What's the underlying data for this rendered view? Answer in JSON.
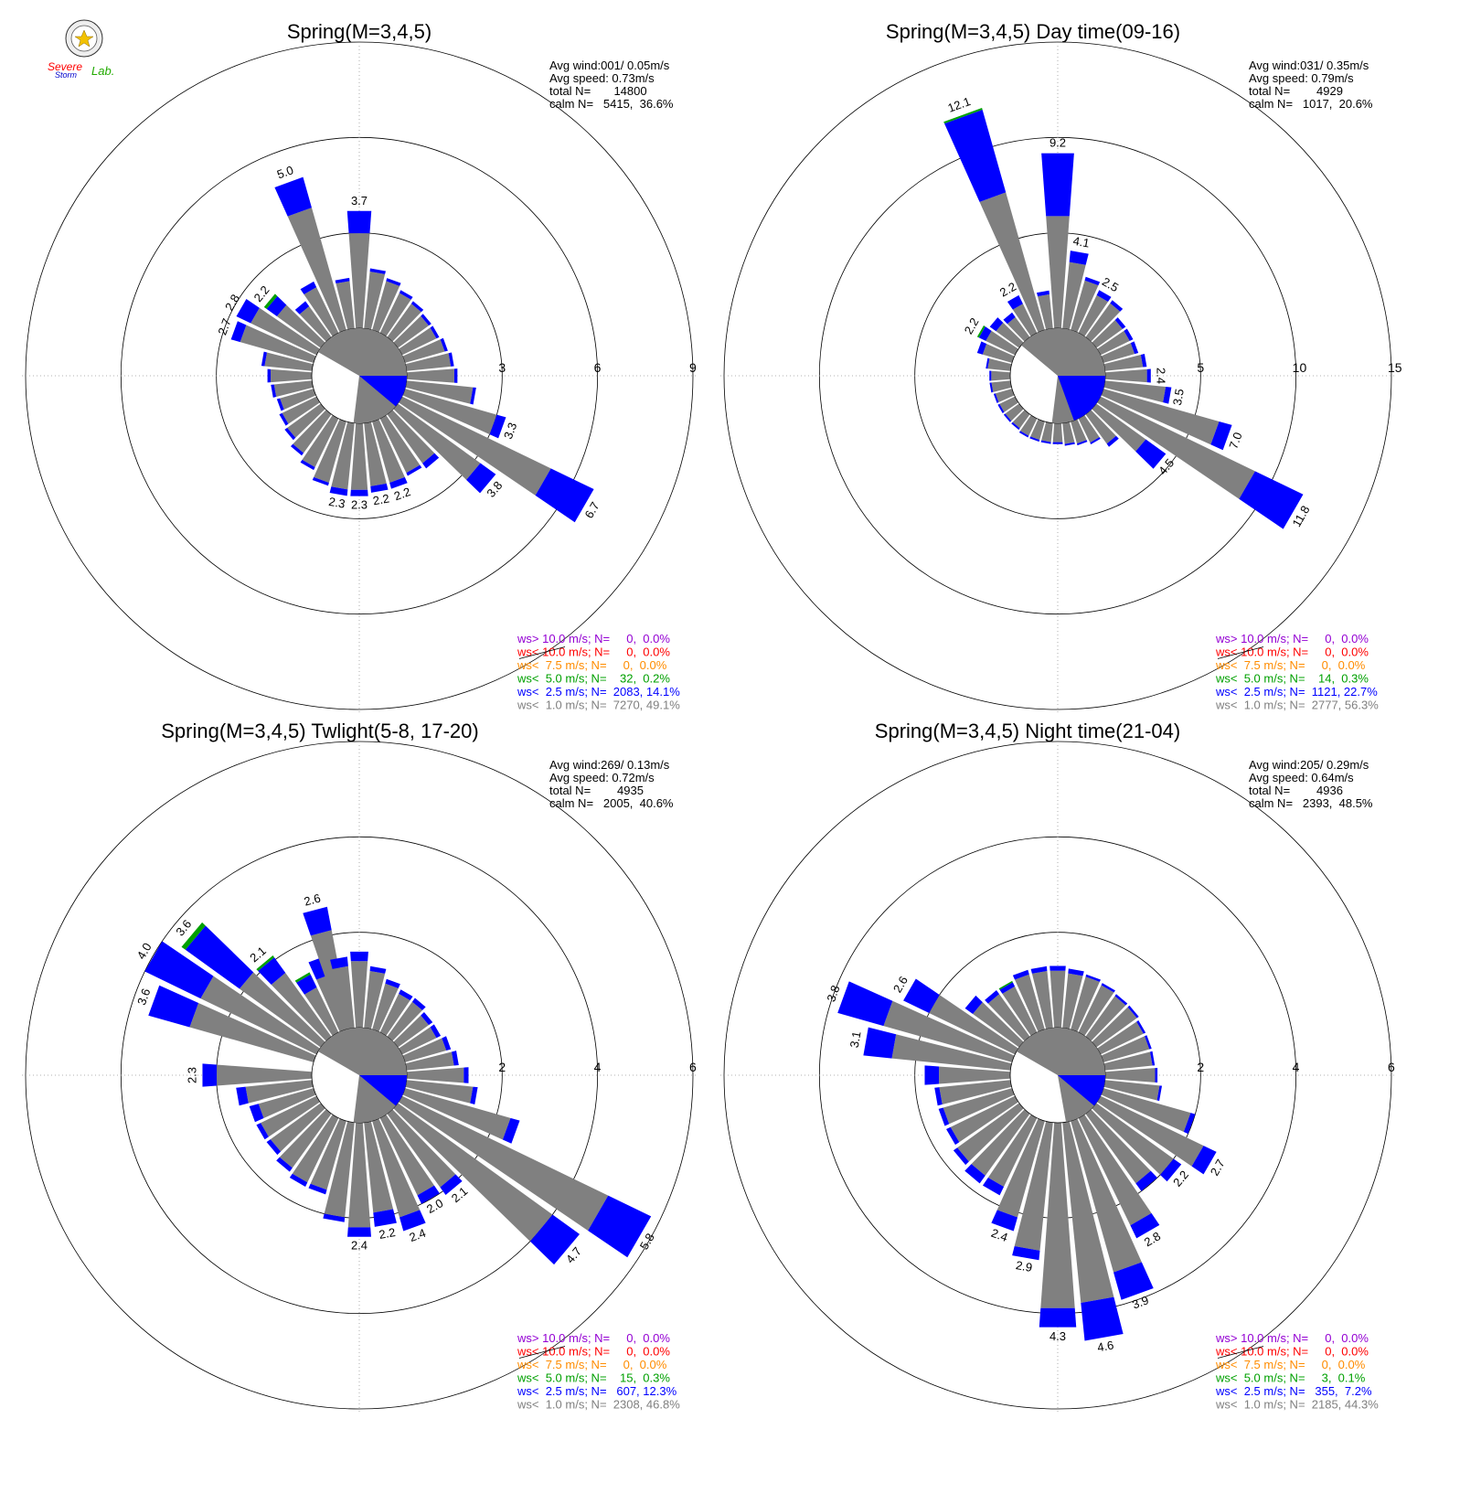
{
  "logo": {
    "text_top": "Severe",
    "text_bottom": "Storm",
    "text_right": "Lab."
  },
  "colors": {
    "ws_gt_10": "#9400d3",
    "ws_lt_10": "#ff0000",
    "ws_lt_7_5": "#ff8c00",
    "ws_lt_5": "#00a000",
    "ws_lt_2_5": "#0000ff",
    "ws_lt_1": "#808080"
  },
  "chart_data": [
    {
      "type": "polar-bar",
      "title": "Spring(M=3,4,5)",
      "r_ticks": [
        "3",
        "6",
        "9"
      ],
      "r_max": 9,
      "stats": [
        "Avg wind:001/ 0.05m/s",
        "Avg speed: 0.73m/s",
        "total N=       14800",
        "calm N=   5415,  36.6%"
      ],
      "calm_wedge": {
        "fraction": 0.366,
        "gray_fraction": 0.856
      },
      "bars": [
        {
          "dir": 0,
          "total": 3.7,
          "blue": 0.7,
          "label": "3.7"
        },
        {
          "dir": 10,
          "total": 1.9,
          "blue": 0.1
        },
        {
          "dir": 20,
          "total": 1.7,
          "blue": 0.1
        },
        {
          "dir": 30,
          "total": 1.5,
          "blue": 0.1
        },
        {
          "dir": 40,
          "total": 1.4,
          "blue": 0.1
        },
        {
          "dir": 50,
          "total": 1.3,
          "blue": 0.1
        },
        {
          "dir": 60,
          "total": 1.3,
          "blue": 0.1
        },
        {
          "dir": 70,
          "total": 1.4,
          "blue": 0.1
        },
        {
          "dir": 80,
          "total": 1.5,
          "blue": 0.1
        },
        {
          "dir": 90,
          "total": 1.6,
          "blue": 0.1
        },
        {
          "dir": 100,
          "total": 2.2,
          "blue": 0.1
        },
        {
          "dir": 110,
          "total": 3.3,
          "blue": 0.3,
          "label": "3.3"
        },
        {
          "dir": 120,
          "total": 6.7,
          "blue": 1.5,
          "label": "6.7"
        },
        {
          "dir": 130,
          "total": 3.8,
          "blue": 0.6,
          "label": "3.8"
        },
        {
          "dir": 140,
          "total": 2.1,
          "blue": 0.2
        },
        {
          "dir": 150,
          "total": 2.0,
          "blue": 0.1
        },
        {
          "dir": 160,
          "total": 2.2,
          "blue": 0.2,
          "label": "2.2"
        },
        {
          "dir": 170,
          "total": 2.2,
          "blue": 0.2,
          "label": "2.2"
        },
        {
          "dir": 180,
          "total": 2.3,
          "blue": 0.2,
          "label": "2.3"
        },
        {
          "dir": 190,
          "total": 2.3,
          "blue": 0.2,
          "label": "2.3"
        },
        {
          "dir": 200,
          "total": 2.1,
          "blue": 0.1
        },
        {
          "dir": 210,
          "total": 1.8,
          "blue": 0.1
        },
        {
          "dir": 220,
          "total": 1.6,
          "blue": 0.1
        },
        {
          "dir": 230,
          "total": 1.4,
          "blue": 0.1
        },
        {
          "dir": 240,
          "total": 1.3,
          "blue": 0.1
        },
        {
          "dir": 250,
          "total": 1.2,
          "blue": 0.1
        },
        {
          "dir": 260,
          "total": 1.3,
          "blue": 0.1
        },
        {
          "dir": 270,
          "total": 1.4,
          "blue": 0.1
        },
        {
          "dir": 280,
          "total": 1.6,
          "blue": 0.1
        },
        {
          "dir": 290,
          "total": 2.7,
          "blue": 0.3,
          "label": "2.7"
        },
        {
          "dir": 300,
          "total": 2.8,
          "blue": 0.5,
          "label": "2.8"
        },
        {
          "dir": 310,
          "total": 2.2,
          "blue": 0.4,
          "green": 0.1,
          "label": "2.2"
        },
        {
          "dir": 320,
          "total": 1.4,
          "blue": 0.2
        },
        {
          "dir": 330,
          "total": 1.8,
          "blue": 0.2
        },
        {
          "dir": 340,
          "total": 5.0,
          "blue": 1.0,
          "label": "5.0"
        },
        {
          "dir": 350,
          "total": 1.6,
          "blue": 0.1
        }
      ],
      "legend": [
        {
          "key": "ws_gt_10",
          "text": "ws> 10.0 m/s; N=     0,  0.0%"
        },
        {
          "key": "ws_lt_10",
          "text": "ws< 10.0 m/s; N=     0,  0.0%"
        },
        {
          "key": "ws_lt_7_5",
          "text": "ws<  7.5 m/s; N=     0,  0.0%"
        },
        {
          "key": "ws_lt_5",
          "text": "ws<  5.0 m/s; N=    32,  0.2%"
        },
        {
          "key": "ws_lt_2_5",
          "text": "ws<  2.5 m/s; N=  2083, 14.1%"
        },
        {
          "key": "ws_lt_1",
          "text": "ws<  1.0 m/s; N=  7270, 49.1%"
        }
      ]
    },
    {
      "type": "polar-bar",
      "title": "Spring(M=3,4,5) Day time(09-16)",
      "r_ticks": [
        "5",
        "10",
        "15"
      ],
      "r_max": 15,
      "stats": [
        "Avg wind:031/ 0.35m/s",
        "Avg speed: 0.79m/s",
        "total N=        4929",
        "calm N=   1017,  20.6%"
      ],
      "calm_wedge": {
        "fraction": 0.206,
        "gray_fraction": 0.713
      },
      "bars": [
        {
          "dir": 0,
          "total": 9.2,
          "blue": 3.3,
          "label": "9.2"
        },
        {
          "dir": 10,
          "total": 4.1,
          "blue": 0.6,
          "label": "4.1"
        },
        {
          "dir": 20,
          "total": 2.9,
          "blue": 0.2
        },
        {
          "dir": 30,
          "total": 2.5,
          "blue": 0.3,
          "label": "2.5"
        },
        {
          "dir": 40,
          "total": 2.4,
          "blue": 0.2
        },
        {
          "dir": 50,
          "total": 1.9,
          "blue": 0.2
        },
        {
          "dir": 60,
          "total": 1.9,
          "blue": 0.2
        },
        {
          "dir": 70,
          "total": 1.9,
          "blue": 0.2
        },
        {
          "dir": 80,
          "total": 2.2,
          "blue": 0.2
        },
        {
          "dir": 90,
          "total": 2.4,
          "blue": 0.2,
          "label": "2.4"
        },
        {
          "dir": 100,
          "total": 3.5,
          "blue": 0.3,
          "label": "3.5"
        },
        {
          "dir": 110,
          "total": 7.0,
          "blue": 0.7,
          "label": "7.0"
        },
        {
          "dir": 120,
          "total": 11.8,
          "blue": 2.8,
          "label": "11.8"
        },
        {
          "dir": 130,
          "total": 4.5,
          "blue": 1.3,
          "label": "4.5"
        },
        {
          "dir": 140,
          "total": 2.1,
          "blue": 0.2
        },
        {
          "dir": 150,
          "total": 1.5,
          "blue": 0.1
        },
        {
          "dir": 160,
          "total": 1.3,
          "blue": 0.1
        },
        {
          "dir": 170,
          "total": 1.2,
          "blue": 0.1
        },
        {
          "dir": 180,
          "total": 1.1,
          "blue": 0.1
        },
        {
          "dir": 190,
          "total": 1.1,
          "blue": 0.1
        },
        {
          "dir": 200,
          "total": 1.1,
          "blue": 0.1
        },
        {
          "dir": 210,
          "total": 1.1,
          "blue": 0.1
        },
        {
          "dir": 220,
          "total": 1.0,
          "blue": 0.1
        },
        {
          "dir": 230,
          "total": 1.0,
          "blue": 0.1
        },
        {
          "dir": 240,
          "total": 1.0,
          "blue": 0.1
        },
        {
          "dir": 250,
          "total": 1.0,
          "blue": 0.1
        },
        {
          "dir": 260,
          "total": 1.1,
          "blue": 0.1
        },
        {
          "dir": 270,
          "total": 1.1,
          "blue": 0.1
        },
        {
          "dir": 280,
          "total": 1.3,
          "blue": 0.1
        },
        {
          "dir": 290,
          "total": 1.9,
          "blue": 0.3
        },
        {
          "dir": 300,
          "total": 2.2,
          "blue": 0.4,
          "green": 0.1,
          "label": "2.2"
        },
        {
          "dir": 310,
          "total": 1.9,
          "blue": 0.4
        },
        {
          "dir": 320,
          "total": 1.6,
          "blue": 0.3
        },
        {
          "dir": 330,
          "total": 2.2,
          "blue": 0.5,
          "label": "2.2"
        },
        {
          "dir": 340,
          "total": 12.1,
          "blue": 4.5,
          "green": 0.1,
          "label": "12.1"
        },
        {
          "dir": 350,
          "total": 2.0,
          "blue": 0.2
        }
      ],
      "legend": [
        {
          "key": "ws_gt_10",
          "text": "ws> 10.0 m/s; N=     0,  0.0%"
        },
        {
          "key": "ws_lt_10",
          "text": "ws< 10.0 m/s; N=     0,  0.0%"
        },
        {
          "key": "ws_lt_7_5",
          "text": "ws<  7.5 m/s; N=     0,  0.0%"
        },
        {
          "key": "ws_lt_5",
          "text": "ws<  5.0 m/s; N=    14,  0.3%"
        },
        {
          "key": "ws_lt_2_5",
          "text": "ws<  2.5 m/s; N=  1121, 22.7%"
        },
        {
          "key": "ws_lt_1",
          "text": "ws<  1.0 m/s; N=  2777, 56.3%"
        }
      ]
    },
    {
      "type": "polar-bar",
      "title": "Spring(M=3,4,5) Twlight(5-8, 17-20)",
      "r_ticks": [
        "2",
        "4",
        "6"
      ],
      "r_max": 6,
      "stats": [
        "Avg wind:269/ 0.13m/s",
        "Avg speed: 0.72m/s",
        "total N=        4935",
        "calm N=   2005,  40.6%"
      ],
      "calm_wedge": {
        "fraction": 0.406,
        "gray_fraction": 0.856
      },
      "bars": [
        {
          "dir": 0,
          "total": 1.6,
          "blue": 0.2
        },
        {
          "dir": 10,
          "total": 1.3,
          "blue": 0.1
        },
        {
          "dir": 20,
          "total": 1.1,
          "blue": 0.1
        },
        {
          "dir": 30,
          "total": 1.0,
          "blue": 0.1
        },
        {
          "dir": 40,
          "total": 1.0,
          "blue": 0.1
        },
        {
          "dir": 50,
          "total": 0.9,
          "blue": 0.1
        },
        {
          "dir": 60,
          "total": 0.9,
          "blue": 0.1
        },
        {
          "dir": 70,
          "total": 1.0,
          "blue": 0.1
        },
        {
          "dir": 80,
          "total": 1.1,
          "blue": 0.1
        },
        {
          "dir": 90,
          "total": 1.3,
          "blue": 0.1
        },
        {
          "dir": 100,
          "total": 1.5,
          "blue": 0.1
        },
        {
          "dir": 110,
          "total": 2.5,
          "blue": 0.2
        },
        {
          "dir": 120,
          "total": 5.8,
          "blue": 1.0,
          "label": "5.8"
        },
        {
          "dir": 130,
          "total": 4.7,
          "blue": 0.7,
          "label": "4.7"
        },
        {
          "dir": 140,
          "total": 2.1,
          "blue": 0.2,
          "label": "2.1"
        },
        {
          "dir": 150,
          "total": 2.0,
          "blue": 0.2,
          "label": "2.0"
        },
        {
          "dir": 160,
          "total": 2.4,
          "blue": 0.3,
          "label": "2.4"
        },
        {
          "dir": 170,
          "total": 2.2,
          "blue": 0.3,
          "label": "2.2"
        },
        {
          "dir": 180,
          "total": 2.4,
          "blue": 0.2,
          "label": "2.4"
        },
        {
          "dir": 190,
          "total": 2.1,
          "blue": 0.1
        },
        {
          "dir": 200,
          "total": 1.6,
          "blue": 0.1
        },
        {
          "dir": 210,
          "total": 1.6,
          "blue": 0.1
        },
        {
          "dir": 220,
          "total": 1.5,
          "blue": 0.1
        },
        {
          "dir": 230,
          "total": 1.4,
          "blue": 0.1
        },
        {
          "dir": 240,
          "total": 1.4,
          "blue": 0.1
        },
        {
          "dir": 250,
          "total": 1.4,
          "blue": 0.2
        },
        {
          "dir": 260,
          "total": 1.6,
          "blue": 0.2
        },
        {
          "dir": 270,
          "total": 2.3,
          "blue": 0.3,
          "label": "2.3"
        },
        {
          "dir": 290,
          "total": 3.6,
          "blue": 0.9,
          "label": "3.6"
        },
        {
          "dir": 300,
          "total": 4.0,
          "blue": 1.3,
          "label": "4.0"
        },
        {
          "dir": 310,
          "total": 3.6,
          "blue": 1.4,
          "green": 0.1,
          "label": "3.6"
        },
        {
          "dir": 320,
          "total": 2.1,
          "blue": 0.4,
          "green": 0.05,
          "label": "2.1"
        },
        {
          "dir": 330,
          "total": 1.4,
          "blue": 0.3,
          "green": 0.05
        },
        {
          "dir": 340,
          "total": 1.6,
          "blue": 0.4
        },
        {
          "dir": 345,
          "total": 2.6,
          "blue": 0.5,
          "label": "2.6"
        },
        {
          "dir": 350,
          "total": 1.5,
          "blue": 0.2
        }
      ],
      "legend": [
        {
          "key": "ws_gt_10",
          "text": "ws> 10.0 m/s; N=     0,  0.0%"
        },
        {
          "key": "ws_lt_10",
          "text": "ws< 10.0 m/s; N=     0,  0.0%"
        },
        {
          "key": "ws_lt_7_5",
          "text": "ws<  7.5 m/s; N=     0,  0.0%"
        },
        {
          "key": "ws_lt_5",
          "text": "ws<  5.0 m/s; N=    15,  0.3%"
        },
        {
          "key": "ws_lt_2_5",
          "text": "ws<  2.5 m/s; N=   607, 12.3%"
        },
        {
          "key": "ws_lt_1",
          "text": "ws<  1.0 m/s; N=  2308, 46.8%"
        }
      ]
    },
    {
      "type": "polar-bar",
      "title": "Spring(M=3,4,5) Night time(21-04)",
      "r_ticks": [
        "2",
        "4",
        "6"
      ],
      "r_max": 6,
      "stats": [
        "Avg wind:205/ 0.29m/s",
        "Avg speed: 0.64m/s",
        "total N=        4936",
        "calm N=   2393,  48.5%"
      ],
      "calm_wedge": {
        "fraction": 0.485,
        "gray_fraction": 0.92
      },
      "bars": [
        {
          "dir": 0,
          "total": 1.3,
          "blue": 0.1
        },
        {
          "dir": 10,
          "total": 1.25,
          "blue": 0.1
        },
        {
          "dir": 20,
          "total": 1.2,
          "blue": 0.05
        },
        {
          "dir": 30,
          "total": 1.15,
          "blue": 0.05
        },
        {
          "dir": 40,
          "total": 1.1,
          "blue": 0.05
        },
        {
          "dir": 50,
          "total": 1.1,
          "blue": 0.05
        },
        {
          "dir": 60,
          "total": 1.05,
          "blue": 0.05
        },
        {
          "dir": 70,
          "total": 1.05,
          "blue": 0.05
        },
        {
          "dir": 80,
          "total": 1.05,
          "blue": 0.05
        },
        {
          "dir": 90,
          "total": 1.1,
          "blue": 0.05
        },
        {
          "dir": 100,
          "total": 1.2,
          "blue": 0.05
        },
        {
          "dir": 110,
          "total": 2.0,
          "blue": 0.1
        },
        {
          "dir": 120,
          "total": 2.7,
          "blue": 0.3,
          "label": "2.7"
        },
        {
          "dir": 130,
          "total": 2.2,
          "blue": 0.2,
          "label": "2.2"
        },
        {
          "dir": 140,
          "total": 2.0,
          "blue": 0.2
        },
        {
          "dir": 150,
          "total": 2.8,
          "blue": 0.3,
          "label": "2.8"
        },
        {
          "dir": 160,
          "total": 3.9,
          "blue": 0.6,
          "label": "3.9"
        },
        {
          "dir": 170,
          "total": 4.6,
          "blue": 0.8,
          "label": "4.6"
        },
        {
          "dir": 180,
          "total": 4.3,
          "blue": 0.4,
          "label": "4.3"
        },
        {
          "dir": 190,
          "total": 2.9,
          "blue": 0.2,
          "label": "2.9"
        },
        {
          "dir": 200,
          "total": 2.4,
          "blue": 0.3,
          "label": "2.4"
        },
        {
          "dir": 210,
          "total": 1.8,
          "blue": 0.2
        },
        {
          "dir": 220,
          "total": 1.8,
          "blue": 0.2
        },
        {
          "dir": 230,
          "total": 1.7,
          "blue": 0.1
        },
        {
          "dir": 240,
          "total": 1.6,
          "blue": 0.1
        },
        {
          "dir": 250,
          "total": 1.6,
          "blue": 0.1
        },
        {
          "dir": 260,
          "total": 1.6,
          "blue": 0.1
        },
        {
          "dir": 270,
          "total": 1.8,
          "blue": 0.3
        },
        {
          "dir": 280,
          "total": 3.1,
          "blue": 0.6,
          "label": "3.1"
        },
        {
          "dir": 290,
          "total": 3.8,
          "blue": 1.0,
          "label": "3.8"
        },
        {
          "dir": 300,
          "total": 2.6,
          "blue": 0.6,
          "label": "2.6"
        },
        {
          "dir": 310,
          "total": 1.4,
          "blue": 0.2
        },
        {
          "dir": 320,
          "total": 1.2,
          "blue": 0.1
        },
        {
          "dir": 330,
          "total": 1.2,
          "blue": 0.1,
          "green": 0.03
        },
        {
          "dir": 340,
          "total": 1.3,
          "blue": 0.1
        },
        {
          "dir": 350,
          "total": 1.3,
          "blue": 0.1
        }
      ],
      "legend": [
        {
          "key": "ws_gt_10",
          "text": "ws> 10.0 m/s; N=     0,  0.0%"
        },
        {
          "key": "ws_lt_10",
          "text": "ws< 10.0 m/s; N=     0,  0.0%"
        },
        {
          "key": "ws_lt_7_5",
          "text": "ws<  7.5 m/s; N=     0,  0.0%"
        },
        {
          "key": "ws_lt_5",
          "text": "ws<  5.0 m/s; N=     3,  0.1%"
        },
        {
          "key": "ws_lt_2_5",
          "text": "ws<  2.5 m/s; N=   355,  7.2%"
        },
        {
          "key": "ws_lt_1",
          "text": "ws<  1.0 m/s; N=  2185, 44.3%"
        }
      ]
    }
  ]
}
